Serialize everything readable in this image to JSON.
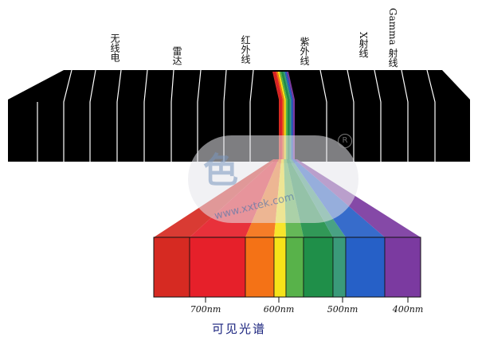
{
  "bands": {
    "radio": "无线电",
    "radar": "雷达",
    "infrared": "红外线",
    "ultraviolet": "紫外线",
    "x_ray": "X射线",
    "gamma": "Gamma 射线"
  },
  "wavelengths": [
    "700nm",
    "600nm",
    "500nm",
    "400nm"
  ],
  "caption": "可见光谱",
  "watermark": {
    "text": "www.xxtek.com",
    "brand": "色",
    "mark": "R"
  },
  "spectrum_colors": [
    "#d62a22",
    "#e6202a",
    "#f47216",
    "#f6e319",
    "#58b24a",
    "#1f8f49",
    "#3a9a7a",
    "#2660c7",
    "#7b3aa0"
  ]
}
